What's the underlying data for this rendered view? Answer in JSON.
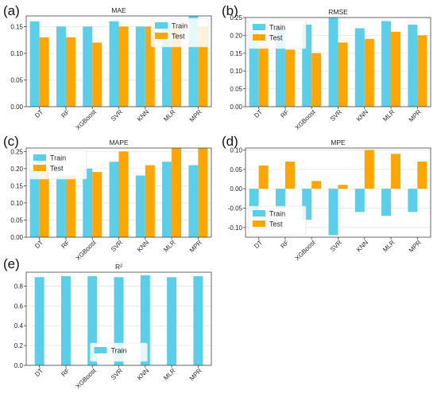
{
  "colors": {
    "train": "#5bcfe9",
    "test": "#ffa500",
    "grid": "#e6e6e6",
    "axis": "#444444"
  },
  "chart_data": [
    {
      "panel": "(a)",
      "type": "bar",
      "title": "MAE",
      "categories": [
        "DT",
        "RF",
        "XGBoost",
        "SVR",
        "KNN",
        "MLR",
        "MPR"
      ],
      "series": [
        {
          "name": "Train",
          "values": [
            0.16,
            0.15,
            0.15,
            0.16,
            0.15,
            0.16,
            0.17
          ]
        },
        {
          "name": "Test",
          "values": [
            0.13,
            0.13,
            0.12,
            0.15,
            0.15,
            0.15,
            0.15
          ]
        }
      ],
      "ylim": [
        0,
        0.17
      ],
      "yticks": [
        0.0,
        0.05,
        0.1,
        0.15
      ],
      "tick_decimals": 2,
      "grid": true,
      "legend": "top-right"
    },
    {
      "panel": "(b)",
      "type": "bar",
      "title": "RMSE",
      "categories": [
        "DT",
        "RF",
        "XGBoost",
        "SVR",
        "KNN",
        "MLR",
        "MPR"
      ],
      "series": [
        {
          "name": "Train",
          "values": [
            0.21,
            0.22,
            0.23,
            0.25,
            0.22,
            0.24,
            0.23
          ]
        },
        {
          "name": "Test",
          "values": [
            0.17,
            0.16,
            0.15,
            0.18,
            0.19,
            0.21,
            0.2
          ]
        }
      ],
      "ylim": [
        0,
        0.25
      ],
      "yticks": [
        0.0,
        0.05,
        0.1,
        0.15,
        0.2,
        0.25
      ],
      "tick_decimals": 2,
      "grid": true,
      "legend": "top-left"
    },
    {
      "panel": "(c)",
      "type": "bar",
      "title": "MAPE",
      "categories": [
        "DT",
        "RF",
        "XGBoost",
        "SVR",
        "KNN",
        "MLR",
        "MPR"
      ],
      "series": [
        {
          "name": "Train",
          "values": [
            0.2,
            0.18,
            0.2,
            0.22,
            0.18,
            0.22,
            0.21
          ]
        },
        {
          "name": "Test",
          "values": [
            0.19,
            0.18,
            0.19,
            0.25,
            0.21,
            0.26,
            0.26
          ]
        }
      ],
      "ylim": [
        0,
        0.26
      ],
      "yticks": [
        0.0,
        0.05,
        0.1,
        0.15,
        0.2,
        0.25
      ],
      "tick_decimals": 2,
      "grid": true,
      "legend": "top-left"
    },
    {
      "panel": "(d)",
      "type": "bar",
      "title": "MPE",
      "categories": [
        "DT",
        "RF",
        "XGBoost",
        "SVR",
        "KNN",
        "MLR",
        "MPR"
      ],
      "series": [
        {
          "name": "Train",
          "values": [
            -0.06,
            -0.05,
            -0.08,
            -0.12,
            -0.06,
            -0.07,
            -0.06
          ]
        },
        {
          "name": "Test",
          "values": [
            0.06,
            0.07,
            0.02,
            0.01,
            0.1,
            0.09,
            0.07
          ]
        }
      ],
      "ylim": [
        -0.125,
        0.105
      ],
      "yticks": [
        -0.1,
        -0.05,
        0.0,
        0.05,
        0.1
      ],
      "tick_decimals": 2,
      "grid": true,
      "legend": "bottom-left"
    },
    {
      "panel": "(e)",
      "type": "bar",
      "title": "R²",
      "categories": [
        "DT",
        "RF",
        "XGBoost",
        "SVR",
        "KNN",
        "MLR",
        "MPR"
      ],
      "series": [
        {
          "name": "Train",
          "values": [
            0.89,
            0.9,
            0.9,
            0.89,
            0.91,
            0.89,
            0.9
          ]
        }
      ],
      "ylim": [
        0,
        0.94
      ],
      "yticks": [
        0.0,
        0.2,
        0.4,
        0.6,
        0.8
      ],
      "tick_decimals": 1,
      "grid": true,
      "legend": "bottom-center"
    }
  ]
}
